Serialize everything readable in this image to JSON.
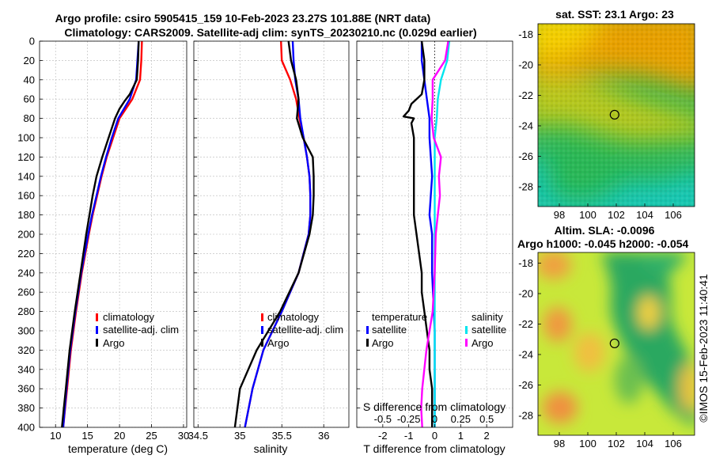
{
  "title_line1": "Argo profile: csiro 5905415_159 10-Feb-2023 23.27S 101.88E (NRT data)",
  "title_line2": "Climatology: CARS2009. Satellite-adj clim: synTS_20230210.nc (0.029d earlier)",
  "copyright": "©IMOS 15-Feb-2023 11:40:41",
  "colors": {
    "climatology": "#ff0000",
    "satellite": "#0000ff",
    "argo": "#000000",
    "sat_salinity": "#00e5ee",
    "argo_salinity": "#ff00ff"
  },
  "chart_data": [
    {
      "id": "temperature",
      "type": "line",
      "xlabel": "temperature (deg C)",
      "ylabel": "",
      "xlim": [
        7.5,
        30.5
      ],
      "ylim": [
        0,
        400
      ],
      "xticks": [
        10,
        15,
        20,
        25,
        30
      ],
      "yticks": [
        0,
        20,
        40,
        60,
        80,
        100,
        120,
        140,
        160,
        180,
        200,
        220,
        240,
        260,
        280,
        300,
        320,
        340,
        360,
        380,
        400
      ],
      "legend": [
        "climatology",
        "satellite-adj. clim",
        "Argo"
      ],
      "series": [
        {
          "name": "climatology",
          "color": "#ff0000",
          "depth": [
            0,
            20,
            40,
            60,
            80,
            100,
            120,
            140,
            160,
            180,
            200,
            240,
            280,
            320,
            360,
            400
          ],
          "values": [
            23.5,
            23.4,
            23.2,
            22.0,
            20.0,
            19.0,
            18.0,
            17.2,
            16.5,
            15.8,
            15.2,
            14.1,
            13.2,
            12.4,
            11.8,
            11.2
          ]
        },
        {
          "name": "satellite-adj. clim",
          "color": "#0000ff",
          "depth": [
            0,
            20,
            40,
            60,
            80,
            100,
            120,
            140,
            160,
            180,
            200,
            240,
            280,
            320,
            360,
            400
          ],
          "values": [
            23.0,
            22.8,
            22.6,
            21.6,
            19.8,
            18.8,
            17.9,
            17.1,
            16.4,
            15.7,
            15.1,
            14.0,
            13.1,
            12.3,
            11.7,
            11.2
          ]
        },
        {
          "name": "Argo",
          "color": "#000000",
          "depth": [
            0,
            20,
            40,
            55,
            62,
            70,
            80,
            100,
            120,
            140,
            160,
            180,
            200,
            240,
            280,
            320,
            360,
            380,
            400
          ],
          "values": [
            23.0,
            22.9,
            22.7,
            21.6,
            20.8,
            20.0,
            19.3,
            18.3,
            17.3,
            16.4,
            15.8,
            15.3,
            14.8,
            13.9,
            13.0,
            12.2,
            11.6,
            11.3,
            11.0
          ]
        }
      ]
    },
    {
      "id": "salinity",
      "type": "line",
      "xlabel": "salinity",
      "ylabel": "",
      "xlim": [
        34.45,
        36.3
      ],
      "ylim": [
        0,
        400
      ],
      "xticks": [
        34.5,
        35,
        35.5,
        36
      ],
      "xticklabels": [
        "34.5",
        "35",
        "35.5",
        "36"
      ],
      "legend": [
        "climatology",
        "satellite-adj. clim",
        "Argo"
      ],
      "series": [
        {
          "name": "climatology",
          "color": "#ff0000",
          "depth": [
            0,
            20,
            40,
            60,
            80,
            100,
            120,
            140,
            160,
            180,
            200,
            240,
            280,
            320,
            360,
            400
          ],
          "values": [
            35.49,
            35.5,
            35.6,
            35.67,
            35.71,
            35.76,
            35.8,
            35.83,
            35.84,
            35.84,
            35.82,
            35.7,
            35.5,
            35.28,
            35.15,
            35.06
          ]
        },
        {
          "name": "satellite-adj. clim",
          "color": "#0000ff",
          "depth": [
            0,
            20,
            40,
            60,
            80,
            100,
            120,
            140,
            160,
            180,
            200,
            240,
            280,
            320,
            360,
            400
          ],
          "values": [
            35.63,
            35.64,
            35.66,
            35.7,
            35.72,
            35.76,
            35.8,
            35.83,
            35.84,
            35.84,
            35.82,
            35.7,
            35.5,
            35.28,
            35.15,
            35.06
          ]
        },
        {
          "name": "Argo",
          "color": "#000000",
          "depth": [
            0,
            20,
            40,
            60,
            80,
            100,
            120,
            140,
            160,
            180,
            200,
            240,
            280,
            320,
            360,
            400
          ],
          "values": [
            35.58,
            35.61,
            35.67,
            35.7,
            35.68,
            35.75,
            35.87,
            35.88,
            35.88,
            35.87,
            35.83,
            35.7,
            35.48,
            35.2,
            35.0,
            34.94
          ]
        }
      ]
    },
    {
      "id": "differences",
      "type": "line",
      "xlabel": "T difference from climatology",
      "top_xlabel": "S difference from climatology",
      "xlim": [
        -3,
        3
      ],
      "top_xlim": [
        -0.75,
        0.75
      ],
      "ylim": [
        0,
        400
      ],
      "xticks": [
        -2,
        -1,
        0,
        1,
        2
      ],
      "top_xticks": [
        -0.5,
        -0.25,
        0,
        0.25,
        0.5
      ],
      "top_xticklabels": [
        "-0.5",
        "-0.25",
        "0",
        "0.25",
        "0.5"
      ],
      "legend_temperature_title": "temperature",
      "legend_salinity_title": "salinity",
      "legend_temperature": [
        "satellite",
        "Argo"
      ],
      "legend_salinity": [
        "satellite",
        "Argo"
      ],
      "series": [
        {
          "name": "T satellite",
          "axis": "bottom",
          "color": "#0000ff",
          "depth": [
            0,
            20,
            40,
            60,
            80,
            100,
            140,
            180,
            200,
            240,
            300,
            400
          ],
          "values": [
            -0.5,
            -0.5,
            -0.4,
            -0.3,
            -0.2,
            -0.2,
            -0.1,
            -0.2,
            -0.1,
            -0.1,
            0.0,
            0.0
          ]
        },
        {
          "name": "T Argo",
          "axis": "bottom",
          "color": "#000000",
          "depth": [
            0,
            20,
            40,
            55,
            65,
            72,
            78,
            80,
            85,
            100,
            120,
            140,
            160,
            180,
            200,
            220,
            240,
            260,
            280,
            300,
            320,
            340,
            360,
            380,
            400
          ],
          "values": [
            -0.5,
            -0.4,
            -0.4,
            -0.5,
            -0.9,
            -1.0,
            -1.2,
            -0.8,
            -0.9,
            -0.8,
            -0.8,
            -0.8,
            -0.8,
            -0.8,
            -0.7,
            -0.6,
            -0.5,
            -0.5,
            -0.4,
            -0.3,
            -0.2,
            -0.2,
            -0.1,
            -0.1,
            -0.1
          ]
        },
        {
          "name": "S satellite",
          "axis": "top",
          "color": "#00e5ee",
          "depth": [
            0,
            20,
            40,
            60,
            80,
            100,
            140,
            180,
            200,
            240,
            300,
            400
          ],
          "values": [
            0.14,
            0.12,
            0.06,
            0.03,
            0.02,
            0.0,
            0.0,
            0.0,
            0.0,
            0.0,
            0.0,
            0.0
          ]
        },
        {
          "name": "S Argo",
          "axis": "top",
          "color": "#ff00ff",
          "depth": [
            0,
            20,
            40,
            60,
            80,
            100,
            120,
            140,
            160,
            180,
            200,
            240,
            280,
            320,
            360,
            380,
            400
          ],
          "values": [
            0.13,
            0.1,
            -0.02,
            -0.02,
            -0.03,
            -0.01,
            0.06,
            0.04,
            0.05,
            0.03,
            0.01,
            0.0,
            -0.02,
            -0.08,
            -0.12,
            -0.13,
            -0.12
          ]
        }
      ]
    },
    {
      "id": "sst_map",
      "type": "heatmap",
      "title": "sat. SST: 23.1 Argo: 23",
      "xlim": [
        96.5,
        107.5
      ],
      "ylim": [
        -29.3,
        -17.3
      ],
      "xticks": [
        98,
        100,
        102,
        104,
        106
      ],
      "yticks": [
        -18,
        -20,
        -22,
        -24,
        -26,
        -28
      ],
      "marker": {
        "lon": 101.88,
        "lat": -23.27
      }
    },
    {
      "id": "sla_map",
      "type": "heatmap",
      "title_line1": "Altim. SLA: -0.0096",
      "title_line2": "Argo h1000: -0.045 h2000: -0.054",
      "xlim": [
        96.5,
        107.5
      ],
      "ylim": [
        -29.3,
        -17.3
      ],
      "xticks": [
        98,
        100,
        102,
        104,
        106
      ],
      "yticks": [
        -18,
        -20,
        -22,
        -24,
        -26,
        -28
      ],
      "marker": {
        "lon": 101.88,
        "lat": -23.27
      }
    }
  ]
}
